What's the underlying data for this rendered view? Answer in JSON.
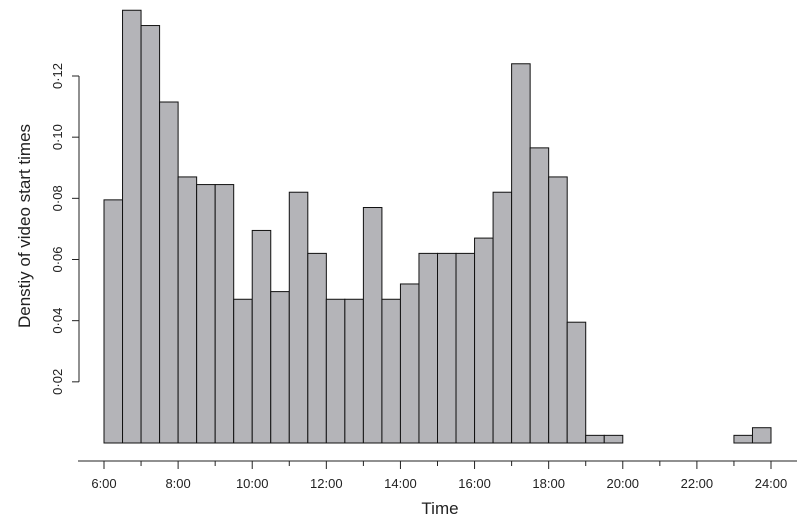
{
  "chart_data": {
    "type": "bar",
    "xlabel": "Time",
    "ylabel": "Denstiy of video start times",
    "bin_width_minutes": 30,
    "x_range": [
      "6:00",
      "24:00"
    ],
    "ylim": [
      0,
      0.14
    ],
    "bins": [
      {
        "start": "6:00",
        "end": "6:30",
        "value": 0.0795
      },
      {
        "start": "6:30",
        "end": "7:00",
        "value": 0.1415
      },
      {
        "start": "7:00",
        "end": "7:30",
        "value": 0.1365
      },
      {
        "start": "7:30",
        "end": "8:00",
        "value": 0.1115
      },
      {
        "start": "8:00",
        "end": "8:30",
        "value": 0.087
      },
      {
        "start": "8:30",
        "end": "9:00",
        "value": 0.0845
      },
      {
        "start": "9:00",
        "end": "9:30",
        "value": 0.0845
      },
      {
        "start": "9:30",
        "end": "10:00",
        "value": 0.047
      },
      {
        "start": "10:00",
        "end": "10:30",
        "value": 0.0695
      },
      {
        "start": "10:30",
        "end": "11:00",
        "value": 0.0495
      },
      {
        "start": "11:00",
        "end": "11:30",
        "value": 0.082
      },
      {
        "start": "11:30",
        "end": "12:00",
        "value": 0.062
      },
      {
        "start": "12:00",
        "end": "12:30",
        "value": 0.047
      },
      {
        "start": "12:30",
        "end": "13:00",
        "value": 0.047
      },
      {
        "start": "13:00",
        "end": "13:30",
        "value": 0.077
      },
      {
        "start": "13:30",
        "end": "14:00",
        "value": 0.047
      },
      {
        "start": "14:00",
        "end": "14:30",
        "value": 0.052
      },
      {
        "start": "14:30",
        "end": "15:00",
        "value": 0.062
      },
      {
        "start": "15:00",
        "end": "15:30",
        "value": 0.062
      },
      {
        "start": "15:30",
        "end": "16:00",
        "value": 0.062
      },
      {
        "start": "16:00",
        "end": "16:30",
        "value": 0.067
      },
      {
        "start": "16:30",
        "end": "17:00",
        "value": 0.082
      },
      {
        "start": "17:00",
        "end": "17:30",
        "value": 0.124
      },
      {
        "start": "17:30",
        "end": "18:00",
        "value": 0.0965
      },
      {
        "start": "18:00",
        "end": "18:30",
        "value": 0.087
      },
      {
        "start": "18:30",
        "end": "19:00",
        "value": 0.0395
      },
      {
        "start": "19:00",
        "end": "19:30",
        "value": 0.0025
      },
      {
        "start": "19:30",
        "end": "20:00",
        "value": 0.0025
      },
      {
        "start": "20:00",
        "end": "20:30",
        "value": 0
      },
      {
        "start": "20:30",
        "end": "21:00",
        "value": 0
      },
      {
        "start": "21:00",
        "end": "21:30",
        "value": 0
      },
      {
        "start": "21:30",
        "end": "22:00",
        "value": 0
      },
      {
        "start": "22:00",
        "end": "22:30",
        "value": 0
      },
      {
        "start": "22:30",
        "end": "23:00",
        "value": 0
      },
      {
        "start": "23:00",
        "end": "23:30",
        "value": 0.0025
      },
      {
        "start": "23:30",
        "end": "24:00",
        "value": 0.005
      }
    ],
    "x_ticks": [
      "6:00",
      "8:00",
      "10:00",
      "12:00",
      "14:00",
      "16:00",
      "18:00",
      "20:00",
      "22:00",
      "24:00"
    ],
    "y_ticks": [
      "0·02",
      "0·04",
      "0·06",
      "0·08",
      "0·10",
      "0·12"
    ],
    "y_tick_values": [
      0.02,
      0.04,
      0.06,
      0.08,
      0.1,
      0.12
    ],
    "bar_fill": "#b4b4b8",
    "bar_stroke": "#111111",
    "grid": false,
    "legend": "none"
  }
}
